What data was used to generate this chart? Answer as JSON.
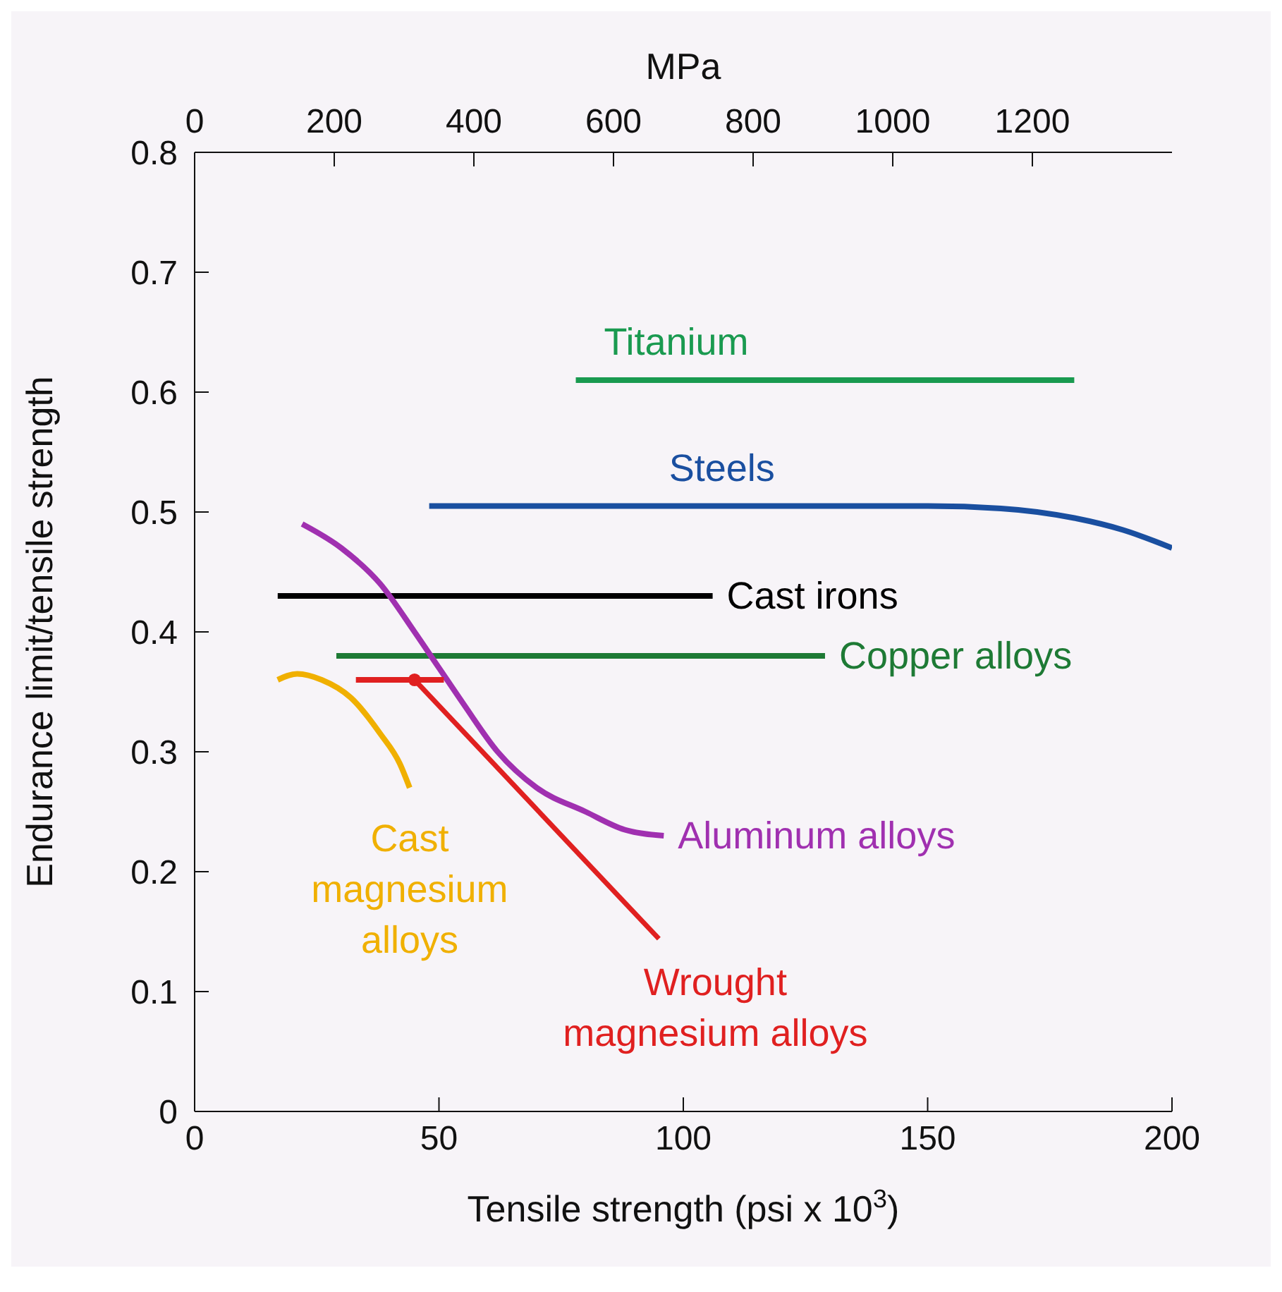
{
  "chart_data": {
    "type": "line",
    "xlabel": "Tensile strength (psi x 10$^{3}$)",
    "ylabel": "Endurance limit/tensile strength",
    "x2label": "MPa",
    "xlim": [
      0,
      200
    ],
    "xticks": [
      0,
      50,
      100,
      150,
      200
    ],
    "x2lim": [
      0,
      1400
    ],
    "x2ticks": [
      0,
      200,
      400,
      600,
      800,
      1000,
      1200
    ],
    "ylim": [
      0,
      0.8
    ],
    "yticks": [
      0,
      0.1,
      0.2,
      0.3,
      0.4,
      0.5,
      0.6,
      0.7,
      0.8
    ],
    "marker": "none",
    "series": [
      {
        "name": "Titanium",
        "color": "#1a9a50",
        "x": [
          78,
          180
        ],
        "values": [
          0.61,
          0.61
        ]
      },
      {
        "name": "Steels",
        "color": "#1a4fa0",
        "x": [
          48,
          100,
          150,
          165,
          180,
          190,
          200
        ],
        "values": [
          0.505,
          0.505,
          0.505,
          0.503,
          0.495,
          0.485,
          0.47
        ]
      },
      {
        "name": "Cast irons",
        "color": "#000000",
        "x": [
          17,
          106
        ],
        "values": [
          0.43,
          0.43
        ]
      },
      {
        "name": "Copper alloys",
        "color": "#1e7a35",
        "x": [
          29,
          129
        ],
        "values": [
          0.38,
          0.38
        ]
      },
      {
        "name": "Aluminum alloys",
        "color": "#a030b0",
        "x": [
          22,
          30,
          38,
          45,
          50,
          55,
          62,
          70,
          80,
          88,
          96
        ],
        "values": [
          0.49,
          0.47,
          0.44,
          0.4,
          0.37,
          0.34,
          0.3,
          0.27,
          0.25,
          0.235,
          0.23
        ]
      },
      {
        "name": "Cast magnesium alloys",
        "color": "#f0b000",
        "x": [
          17,
          21,
          26,
          32,
          38,
          42,
          44
        ],
        "values": [
          0.36,
          0.365,
          0.36,
          0.345,
          0.315,
          0.29,
          0.27
        ]
      },
      {
        "name": "Wrought magnesium alloys",
        "color": "#e02020",
        "x": [
          33,
          51
        ],
        "values": [
          0.36,
          0.36
        ]
      },
      {
        "type": "scatter",
        "color": "#e02020",
        "x": [
          45
        ],
        "values": [
          0.36
        ],
        "marker": "circle"
      }
    ]
  }
}
